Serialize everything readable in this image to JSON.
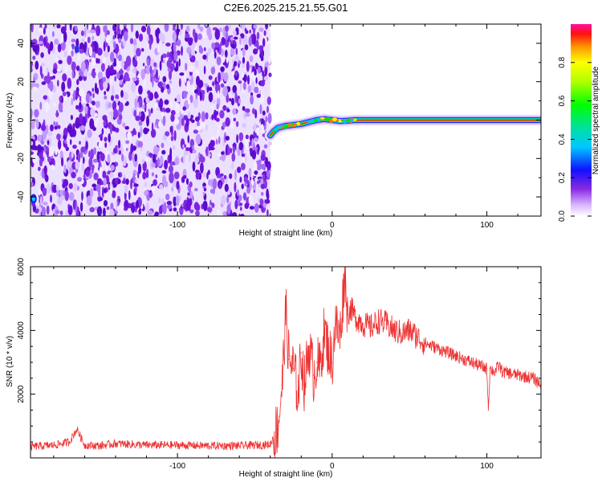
{
  "title": "C2E6.2025.215.21.55.G01",
  "chart_data": [
    {
      "type": "heatmap",
      "xlabel": "Height of straight line (km)",
      "ylabel": "Frequency (Hz)",
      "xlim": [
        -195,
        135
      ],
      "ylim": [
        -50,
        50
      ],
      "xticks": [
        -100,
        0,
        100
      ],
      "yticks": [
        -40,
        -20,
        0,
        20,
        40
      ],
      "noise_region_x": [
        -195,
        -40
      ],
      "signal_track": {
        "x": [
          -40,
          -38,
          -35,
          -30,
          -25,
          -20,
          -15,
          -10,
          -5,
          0,
          5,
          10,
          15,
          135
        ],
        "y": [
          -8,
          -6,
          -4,
          -3,
          -2.5,
          -2,
          -1,
          0,
          0.5,
          0,
          -0.5,
          -0.3,
          0,
          0
        ]
      },
      "colorbar": {
        "label": "Normalized spectral amplitude",
        "ticks": [
          0.0,
          0.2,
          0.4,
          0.6,
          0.8
        ],
        "range": [
          0,
          1
        ]
      },
      "grid": false
    },
    {
      "type": "line",
      "xlabel": "Height of straight line (km)",
      "ylabel": "SNR (10 * v/v)",
      "xlim": [
        -195,
        135
      ],
      "ylim": [
        0,
        6000
      ],
      "xticks": [
        -100,
        0,
        100
      ],
      "yticks": [
        2000,
        4000,
        6000
      ],
      "line_color": "#ee3030",
      "series": [
        {
          "x": [
            -195,
            -180,
            -170,
            -165,
            -160,
            -150,
            -140,
            -120,
            -100,
            -80,
            -60,
            -50,
            -40,
            -35,
            -32,
            -30,
            -28,
            -25,
            -22,
            -20,
            -18,
            -15,
            -12,
            -10,
            -8,
            -5,
            -3,
            0,
            2,
            5,
            7,
            8,
            10,
            12,
            15,
            18,
            20,
            25,
            30,
            35,
            40,
            45,
            50,
            55,
            60,
            70,
            80,
            90,
            95,
            100,
            101,
            102,
            105,
            108,
            110,
            120,
            130,
            135
          ],
          "y": [
            350,
            400,
            500,
            900,
            400,
            380,
            450,
            400,
            400,
            380,
            380,
            400,
            420,
            1000,
            2500,
            4600,
            3100,
            2800,
            2000,
            3300,
            2300,
            3500,
            2600,
            3000,
            2800,
            4000,
            3500,
            3000,
            4200,
            3800,
            5000,
            6000,
            4500,
            4700,
            4400,
            4300,
            4200,
            4100,
            4300,
            4200,
            4000,
            3900,
            4000,
            3800,
            3600,
            3400,
            3200,
            3000,
            2900,
            2800,
            1500,
            2800,
            2700,
            2900,
            2700,
            2600,
            2500,
            2300
          ]
        }
      ],
      "grid": false
    }
  ]
}
